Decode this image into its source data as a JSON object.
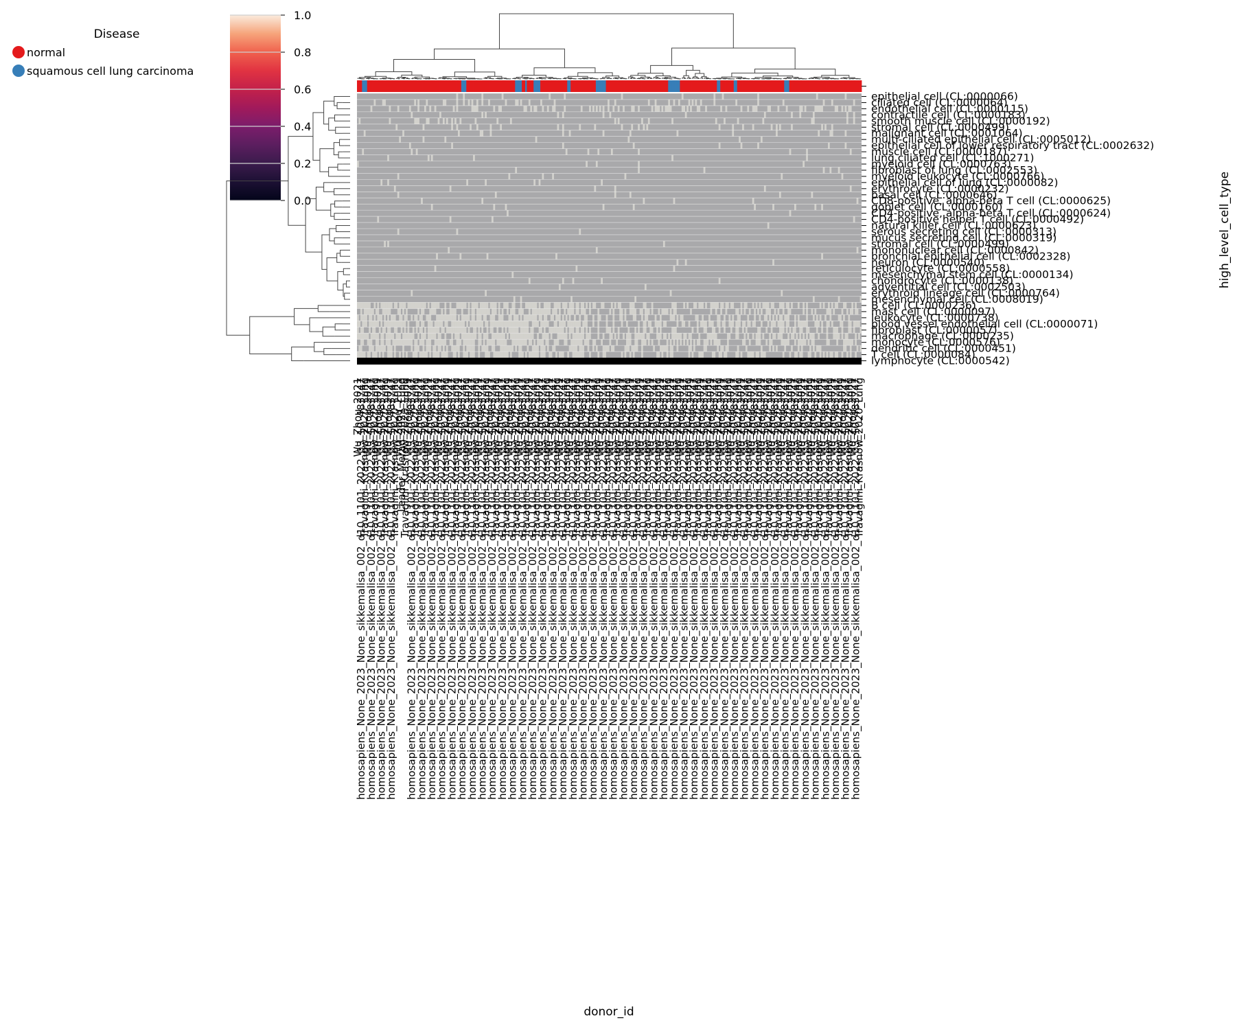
{
  "chart_data": {
    "type": "heatmap",
    "title": "",
    "xlabel": "donor_id",
    "ylabel": "high_level_cell_type",
    "legend": {
      "title": "Disease",
      "placement": "top-left",
      "items": [
        {
          "label": "normal",
          "color": "#e41a1c"
        },
        {
          "label": "squamous cell lung carcinoma",
          "color": "#377eb8"
        }
      ]
    },
    "colorbar": {
      "placement": "top-left",
      "range": [
        0,
        1
      ],
      "ticks": [
        "1.0",
        "0.8",
        "0.6",
        "0.4",
        "0.2",
        "0.0"
      ],
      "tick_values": [
        1.0,
        0.8,
        0.6,
        0.4,
        0.2,
        0.0
      ]
    },
    "cell_colors": {
      "high": "#d3d2cd",
      "low": "#a9a9ab",
      "missing_row": "#000000",
      "grid": "#e6e6e6"
    },
    "rows": [
      "epithelial cell (CL:0000066)",
      "ciliated cell (CL:0000064)",
      "endothelial cell (CL:0000115)",
      "contractile cell (CL:0000183)",
      "smooth muscle cell (CL:0000192)",
      "stromal cell (CL:0000499)",
      "malignant cell (CL:0001064)",
      "multi-ciliated epithelial cell (CL:0005012)",
      "epithelial cell of lower respiratory tract (CL:0002632)",
      "muscle cell (CL:0000187)",
      "lung ciliated cell (CL:1000271)",
      "myeloid cell (CL:0000763)",
      "fibroblast of lung (CL:0002553)",
      "myeloid leukocyte (CL:0000766)",
      "epithelial cell of lung (CL:0000082)",
      "erythrocyte (CL:0000232)",
      "basal cell (CL:0000646)",
      "CD8-positive, alpha-beta T cell (CL:0000625)",
      "goblet cell (CL:0000160)",
      "CD4-positive, alpha-beta T cell (CL:0000624)",
      "CD4-positive helper T cell (CL:0000492)",
      "natural killer cell (CL:0000623)",
      "serous secreting cell (CL:0000313)",
      "mucus secreting cell (CL:0000319)",
      "stromal cell (CL:0000499)",
      "mononuclear cell (CL:0000842)",
      "bronchial epithelial cell (CL:0002328)",
      "neuron (CL:0000540)",
      "reticulocyte (CL:0000558)",
      "mesenchymal stem cell (CL:0000134)",
      "chondrocyte (CL:0000138)",
      "adventitial cell (CL:0002503)",
      "erythroid lineage cell (CL:0000764)",
      "mesenchymal cell (CL:0008019)",
      "B cell (CL:0000236)",
      "mast cell (CL:0000097)",
      "leukocyte (CL:0000738)",
      "blood vessel endothelial cell (CL:0000071)",
      "fibroblast (CL:0000057)",
      "macrophage (CL:0000235)",
      "monocyte (CL:0000576)",
      "dendritic cell (CL:0000451)",
      "T cell (CL:0000084)",
      "lymphocyte (CL:0000542)"
    ],
    "column_count": 300,
    "column_disease_blue_ranges": [
      [
        3,
        6
      ],
      [
        62,
        65
      ],
      [
        94,
        98
      ],
      [
        100,
        101
      ],
      [
        105,
        109
      ],
      [
        125,
        127
      ],
      [
        142,
        148
      ],
      [
        185,
        188
      ],
      [
        188,
        192
      ],
      [
        214,
        216
      ],
      [
        224,
        226
      ],
      [
        254,
        257
      ]
    ],
    "row_high_fraction": [
      0.05,
      0.12,
      0.25,
      0.05,
      0.08,
      0.08,
      0.06,
      0.02,
      0.04,
      0.02,
      0.03,
      0.03,
      0.02,
      0.02,
      0.02,
      0.02,
      0.02,
      0.02,
      0.02,
      0.01,
      0.01,
      0.01,
      0.01,
      0.01,
      0.01,
      0.01,
      0.01,
      0.01,
      0.01,
      0.01,
      0.01,
      0.01,
      0.01,
      0.01,
      0.55,
      0.45,
      0.5,
      0.55,
      0.5,
      0.6,
      0.55,
      0.45,
      0.5,
      0.0
    ],
    "column_labels": [
      "homosapiens_None_2023_None_sikkemalisa_002_d10_1101_2022_03_10_483747",
      "Travaglini_Krasnow_2020_Lung",
      "Leader_Merad_2021_Lung",
      "Wu_Zhou_2021",
      "homosapiens_None_2023_None_sikkemalisa_002_d10_1101_2022_03_10_483747",
      "homosapiens_None_2023_None_sikkemalisa_002_d10_1101_2022_03_10_483747"
    ]
  }
}
